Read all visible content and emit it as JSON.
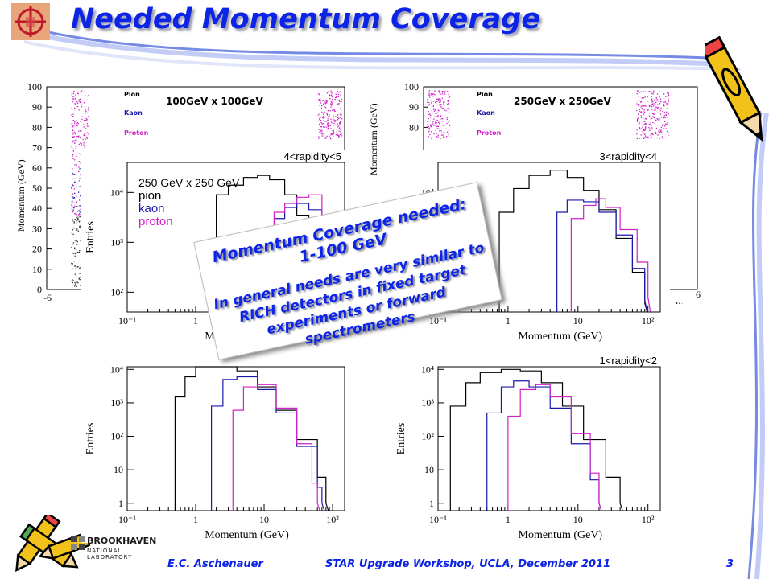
{
  "slide": {
    "title": "Needed Momentum Coverage",
    "footer_author": "E.C. Aschenauer",
    "footer_event": "STAR Upgrade Workshop, UCLA, December 2011",
    "page_number": "3",
    "lab_name": "BROOKHAVEN",
    "lab_sub": "NATIONAL LABORATORY",
    "accent_color": "#0b24e6"
  },
  "callout": {
    "line1": "Momentum Coverage needed:",
    "line2": "1-100 GeV",
    "line3": "In general needs are very similar to RICH detectors in fixed target experiments or forward spectrometers"
  },
  "background_plots": [
    {
      "label": "100GeV x 100GeV",
      "ylabel": "Momentum (GeV)",
      "yticks": [
        "100",
        "90",
        "80",
        "70",
        "60",
        "50",
        "40",
        "30",
        "20",
        "10",
        "0"
      ],
      "xtick_left": "-6",
      "legend": [
        "Pion",
        "Kaon",
        "Proton"
      ]
    },
    {
      "label": "250GeV x 250GeV",
      "ylabel": "Momentum (GeV)",
      "yticks": [
        "100",
        "90",
        "80"
      ],
      "xtick_right": "6",
      "xlabel_frag": "dity",
      "legend": [
        "Pion",
        "Kaon",
        "Proton"
      ]
    }
  ],
  "chart_data": [
    {
      "type": "line",
      "title": "4<rapidity<5",
      "xlabel": "Momentum (GeV)",
      "ylabel": "Entries",
      "xscale": "log",
      "yscale": "log",
      "xlim": [
        0.1,
        150
      ],
      "ylim": [
        40,
        40000
      ],
      "xticks": [
        "10⁻¹",
        "1",
        "10",
        "10²"
      ],
      "yticks": [
        "10²",
        "10³",
        "10⁴"
      ],
      "legend": [
        "250 GeV x 250 GeV",
        "pion",
        "kaon",
        "proton"
      ],
      "colors": {
        "pion": "#000000",
        "kaon": "#1a1aaa",
        "proton": "#d020c8"
      },
      "series": [
        {
          "name": "pion",
          "points": [
            [
              2.0,
              40
            ],
            [
              2.0,
              9000
            ],
            [
              3,
              14000
            ],
            [
              5,
              20000
            ],
            [
              8,
              22000
            ],
            [
              12,
              18000
            ],
            [
              20,
              9000
            ],
            [
              30,
              3500
            ],
            [
              45,
              900
            ],
            [
              70,
              200
            ],
            [
              100,
              60
            ]
          ]
        },
        {
          "name": "kaon",
          "points": [
            [
              14,
              40
            ],
            [
              14,
              3000
            ],
            [
              20,
              5000
            ],
            [
              30,
              6000
            ],
            [
              45,
              4500
            ],
            [
              70,
              1500
            ],
            [
              100,
              300
            ],
            [
              130,
              80
            ]
          ]
        },
        {
          "name": "proton",
          "points": [
            [
              14,
              40
            ],
            [
              14,
              4000
            ],
            [
              20,
              6000
            ],
            [
              30,
              8000
            ],
            [
              45,
              9000
            ],
            [
              70,
              3000
            ],
            [
              100,
              600
            ],
            [
              130,
              100
            ]
          ]
        }
      ]
    },
    {
      "type": "line",
      "title": "3<rapidity<4",
      "xlabel": "Momentum (GeV)",
      "ylabel": "Entries",
      "xscale": "log",
      "yscale": "log",
      "xlim": [
        0.1,
        150
      ],
      "ylim": [
        40,
        40000
      ],
      "xticks": [
        "10⁻¹",
        "1",
        "10",
        "10²"
      ],
      "yticks": [
        "10²",
        "10³",
        "10⁴"
      ],
      "colors": {
        "pion": "#000000",
        "kaon": "#1a1aaa",
        "proton": "#d020c8"
      },
      "series": [
        {
          "name": "pion",
          "points": [
            [
              0.75,
              40
            ],
            [
              0.75,
              4000
            ],
            [
              1.2,
              12000
            ],
            [
              2,
              22000
            ],
            [
              4,
              28000
            ],
            [
              7,
              20000
            ],
            [
              12,
              11000
            ],
            [
              20,
              4500
            ],
            [
              35,
              1200
            ],
            [
              60,
              250
            ],
            [
              90,
              60
            ]
          ]
        },
        {
          "name": "kaon",
          "points": [
            [
              5,
              40
            ],
            [
              5,
              4000
            ],
            [
              7,
              7000
            ],
            [
              12,
              6500
            ],
            [
              20,
              4000
            ],
            [
              35,
              1400
            ],
            [
              60,
              300
            ],
            [
              90,
              70
            ]
          ]
        },
        {
          "name": "proton",
          "points": [
            [
              8,
              40
            ],
            [
              8,
              3000
            ],
            [
              12,
              5500
            ],
            [
              18,
              7500
            ],
            [
              25,
              5000
            ],
            [
              40,
              1800
            ],
            [
              70,
              400
            ],
            [
              100,
              80
            ]
          ]
        }
      ]
    },
    {
      "type": "line",
      "title": "",
      "xlabel": "Momentum (GeV)",
      "ylabel": "Entries",
      "xscale": "log",
      "yscale": "log",
      "xlim": [
        0.1,
        150
      ],
      "ylim": [
        0.6,
        12000
      ],
      "xticks": [
        "10⁻¹",
        "1",
        "10",
        "10²"
      ],
      "yticks": [
        "1",
        "10",
        "10²",
        "10³",
        "10⁴"
      ],
      "colors": {
        "pion": "#000000",
        "kaon": "#1a1aaa",
        "proton": "#d020c8"
      },
      "series": [
        {
          "name": "pion",
          "points": [
            [
              0.5,
              0.6
            ],
            [
              0.5,
              1500
            ],
            [
              0.7,
              6000
            ],
            [
              1,
              12000
            ],
            [
              2,
              12000
            ],
            [
              4,
              9000
            ],
            [
              8,
              3000
            ],
            [
              15,
              600
            ],
            [
              30,
              80
            ],
            [
              60,
              6
            ],
            [
              80,
              1
            ]
          ]
        },
        {
          "name": "kaon",
          "points": [
            [
              1.7,
              0.6
            ],
            [
              1.7,
              800
            ],
            [
              2.5,
              5000
            ],
            [
              4,
              6000
            ],
            [
              8,
              2500
            ],
            [
              15,
              500
            ],
            [
              30,
              50
            ],
            [
              60,
              3
            ],
            [
              70,
              1
            ]
          ]
        },
        {
          "name": "proton",
          "points": [
            [
              3.5,
              0.6
            ],
            [
              3.5,
              600
            ],
            [
              5,
              3000
            ],
            [
              8,
              3500
            ],
            [
              15,
              700
            ],
            [
              30,
              60
            ],
            [
              50,
              4
            ],
            [
              60,
              1
            ]
          ]
        }
      ]
    },
    {
      "type": "line",
      "title": "1<rapidity<2",
      "xlabel": "Momentum (GeV)",
      "ylabel": "Entries",
      "xscale": "log",
      "yscale": "log",
      "xlim": [
        0.1,
        150
      ],
      "ylim": [
        0.6,
        12000
      ],
      "xticks": [
        "10⁻¹",
        "1",
        "10",
        "10²"
      ],
      "yticks": [
        "1",
        "10",
        "10²",
        "10³",
        "10⁴"
      ],
      "colors": {
        "pion": "#000000",
        "kaon": "#1a1aaa",
        "proton": "#d020c8"
      },
      "series": [
        {
          "name": "pion",
          "points": [
            [
              0.15,
              0.6
            ],
            [
              0.15,
              800
            ],
            [
              0.25,
              4000
            ],
            [
              0.4,
              8000
            ],
            [
              0.8,
              10000
            ],
            [
              1.5,
              9000
            ],
            [
              3,
              4000
            ],
            [
              6,
              800
            ],
            [
              12,
              80
            ],
            [
              25,
              6
            ],
            [
              40,
              1
            ]
          ]
        },
        {
          "name": "kaon",
          "points": [
            [
              0.5,
              0.6
            ],
            [
              0.5,
              500
            ],
            [
              0.8,
              3000
            ],
            [
              1.2,
              4500
            ],
            [
              2,
              3000
            ],
            [
              4,
              700
            ],
            [
              8,
              60
            ],
            [
              15,
              5
            ],
            [
              20,
              1
            ]
          ]
        },
        {
          "name": "proton",
          "points": [
            [
              1.0,
              0.6
            ],
            [
              1.0,
              400
            ],
            [
              1.5,
              2500
            ],
            [
              2.5,
              3500
            ],
            [
              4,
              1500
            ],
            [
              8,
              120
            ],
            [
              15,
              8
            ],
            [
              20,
              1
            ]
          ]
        }
      ]
    }
  ]
}
